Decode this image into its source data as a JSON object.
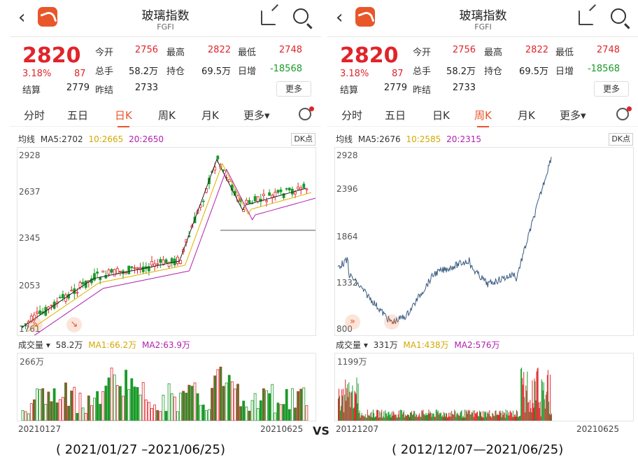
{
  "panels": [
    {
      "title": "玻璃指数",
      "code": "FGFI",
      "price": "2820",
      "change_pct": "3.18%",
      "change_val": "87",
      "stats": [
        {
          "label": "今开",
          "value": "2756",
          "color": "red"
        },
        {
          "label": "最高",
          "value": "2822",
          "color": "red"
        },
        {
          "label": "最低",
          "value": "2748",
          "color": "red"
        },
        {
          "label": "总手",
          "value": "58.2万",
          "color": "black"
        },
        {
          "label": "持仓",
          "value": "69.5万",
          "color": "black"
        },
        {
          "label": "日增",
          "value": "-18568",
          "color": "green"
        },
        {
          "label": "结算",
          "value": "2779",
          "color": "black"
        },
        {
          "label": "昨结",
          "value": "2733",
          "color": "black"
        }
      ],
      "more_label": "更多",
      "tabs": [
        "分时",
        "五日",
        "日K",
        "周K",
        "月K",
        "更多▾"
      ],
      "active_tab": 2,
      "ma": {
        "label": "均线",
        "ma5": "MA5:2702",
        "ma10": "10:2665",
        "ma20": "20:2650"
      },
      "dk_label": "DK点",
      "y_labels": [
        "2928",
        "2637",
        "2345",
        "2053",
        "1761"
      ],
      "vol": {
        "label": "成交量 ▾",
        "value": "58.2万",
        "ma1": "MA1:66.2万",
        "ma2": "MA2:63.9万",
        "max": "266万"
      },
      "date_start": "20210127",
      "date_end": "20210625",
      "caption": "( 2021/01/27 –2021/06/25)"
    },
    {
      "title": "玻璃指数",
      "code": "FGFI",
      "price": "2820",
      "change_pct": "3.18%",
      "change_val": "87",
      "stats": [
        {
          "label": "今开",
          "value": "2756",
          "color": "red"
        },
        {
          "label": "最高",
          "value": "2822",
          "color": "red"
        },
        {
          "label": "最低",
          "value": "2748",
          "color": "red"
        },
        {
          "label": "总手",
          "value": "58.2万",
          "color": "black"
        },
        {
          "label": "持仓",
          "value": "69.5万",
          "color": "black"
        },
        {
          "label": "日增",
          "value": "-18568",
          "color": "green"
        },
        {
          "label": "结算",
          "value": "2779",
          "color": "black"
        },
        {
          "label": "昨结",
          "value": "2733",
          "color": "black"
        }
      ],
      "more_label": "更多",
      "tabs": [
        "分时",
        "五日",
        "日K",
        "周K",
        "月K",
        "更多▾"
      ],
      "active_tab": 3,
      "ma": {
        "label": "均线",
        "ma5": "MA5:2676",
        "ma10": "10:2585",
        "ma20": "20:2315"
      },
      "dk_label": "DK点",
      "y_labels": [
        "2928",
        "2396",
        "1864",
        "1332",
        "800"
      ],
      "vol": {
        "label": "成交量 ▾",
        "value": "331万",
        "ma1": "MA1:438万",
        "ma2": "MA2:576万",
        "max": "1199万"
      },
      "date_start": "20121207",
      "date_end": "20210625",
      "caption": "( 2012/12/07—2021/06/25)"
    }
  ],
  "vs_label": "VS",
  "colors": {
    "up": "#e0242b",
    "down": "#1a9a28",
    "accent": "#e8562a",
    "ma5": "#222222",
    "ma10": "#e0b000",
    "ma20": "#b020b0",
    "line": "#3a5a80"
  }
}
